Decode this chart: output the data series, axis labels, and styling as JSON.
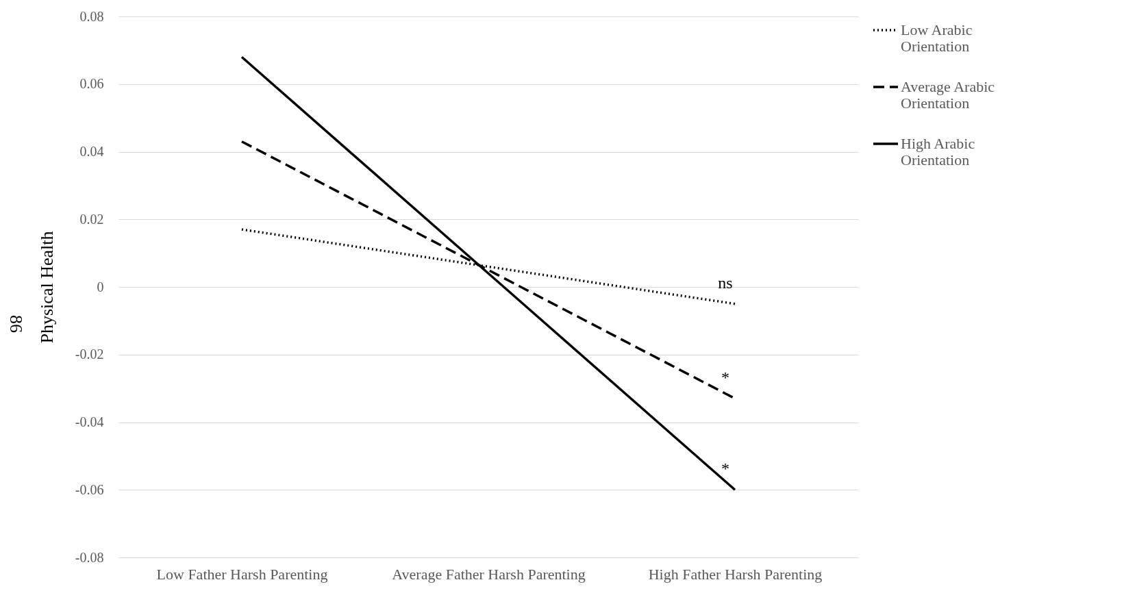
{
  "chart_data": {
    "type": "line",
    "ylabel": "Physical Health",
    "categories": [
      "Low Father Harsh Parenting",
      "Average Father Harsh Parenting",
      "High Father Harsh Parenting"
    ],
    "series": [
      {
        "name": "Low Arabic Orientation",
        "color": "#000000",
        "line_style": "dotted",
        "values": [
          0.017,
          0.006,
          -0.005
        ]
      },
      {
        "name": "Average Arabic Orientation",
        "color": "#000000",
        "line_style": "dashed",
        "values": [
          0.043,
          0.005,
          -0.033
        ]
      },
      {
        "name": "High Arabic Orientation",
        "color": "#000000",
        "line_style": "solid",
        "values": [
          0.068,
          0.004,
          -0.06
        ]
      }
    ],
    "ylim": [
      -0.08,
      0.08
    ],
    "yticks": [
      {
        "value": -0.08,
        "label": "-0.08"
      },
      {
        "value": -0.06,
        "label": "-0.06"
      },
      {
        "value": -0.04,
        "label": "-0.04"
      },
      {
        "value": -0.02,
        "label": "-0.02"
      },
      0,
      0.02,
      0.04,
      0.06,
      0.08
    ],
    "grid": "y",
    "legend": "right",
    "marker": "none",
    "annotations": [
      {
        "text": "ns",
        "x": "High Father Harsh Parenting",
        "y": -0.005
      },
      {
        "text": "*",
        "x": "High Father Harsh Parenting",
        "y": -0.033
      },
      {
        "text": "*",
        "x": "High Father Harsh Parenting",
        "y": -0.06
      },
      "86"
    ]
  }
}
